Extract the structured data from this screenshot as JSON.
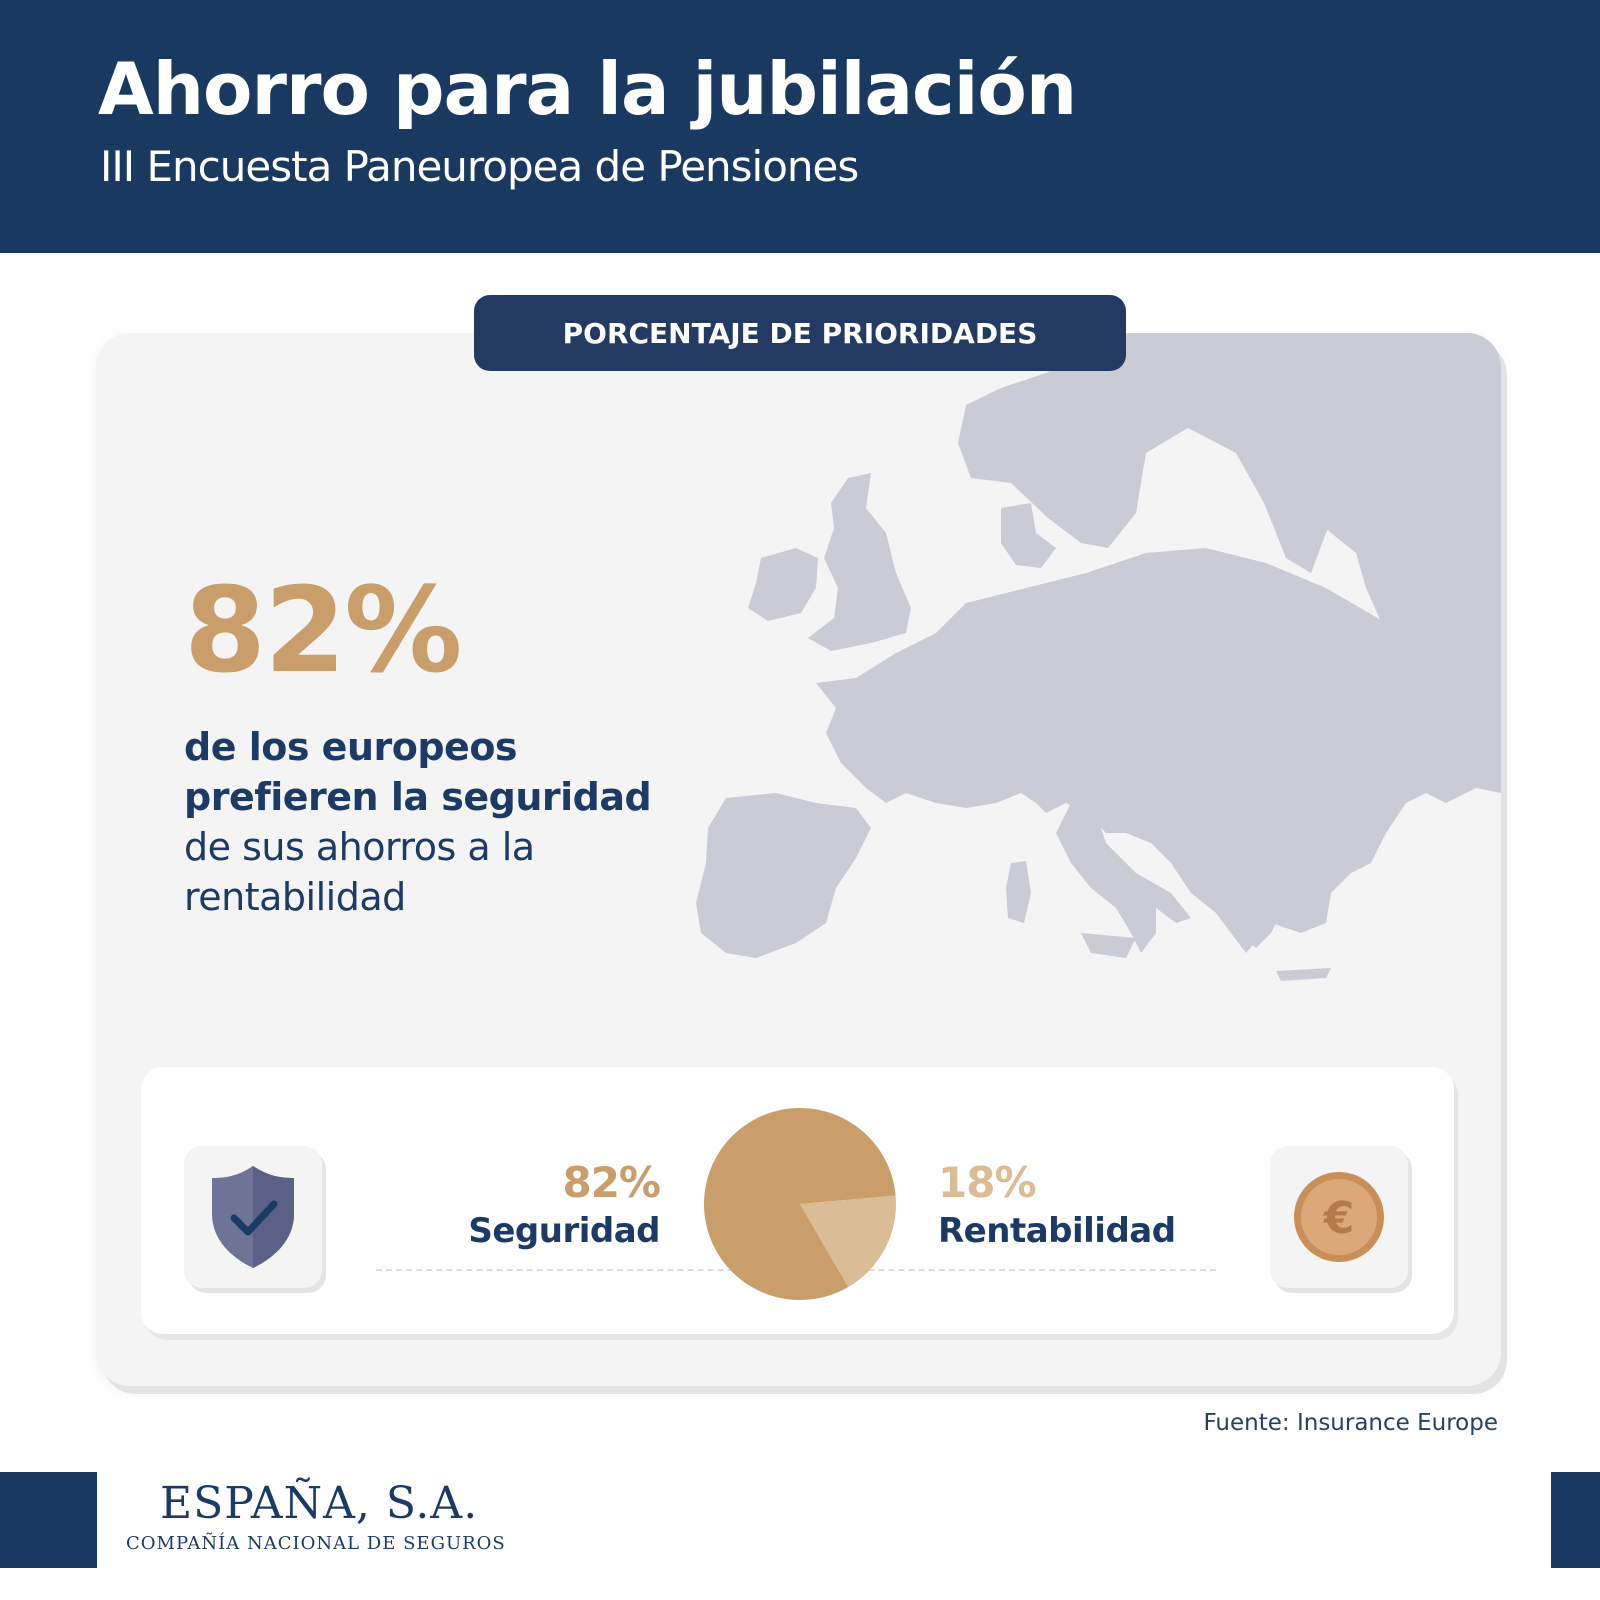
{
  "header": {
    "title": "Ahorro para la jubilación",
    "subtitle": "III Encuesta Paneuropea de Pensiones"
  },
  "section_label": "PORCENTAJE DE PRIORIDADES",
  "highlight": {
    "value": "82%",
    "line1": "de los europeos",
    "line2": "prefieren la seguridad",
    "line3": "de sus ahorros a la",
    "line4": "rentabilidad"
  },
  "legend": {
    "left_value": "82%",
    "left_label": "Seguridad",
    "right_value": "18%",
    "right_label": "Rentabilidad"
  },
  "icons": {
    "left": "shield-check-icon",
    "right": "euro-coin-icon"
  },
  "source": "Fuente: Insurance Europe",
  "logo": {
    "name": "ESPAÑA, S.A.",
    "tagline": "COMPAÑÍA NACIONAL DE SEGUROS"
  },
  "colors": {
    "navy": "#193961",
    "gold": "#c99e6a",
    "light_gold": "#dbbd95",
    "map": "#cbcbd6",
    "card": "#f4f4f5"
  },
  "chart_data": {
    "type": "pie",
    "categories": [
      "Seguridad",
      "Rentabilidad"
    ],
    "values": [
      82,
      18
    ],
    "colors": [
      "#c99e6a",
      "#dbbd95"
    ],
    "title": "",
    "units": "%"
  }
}
